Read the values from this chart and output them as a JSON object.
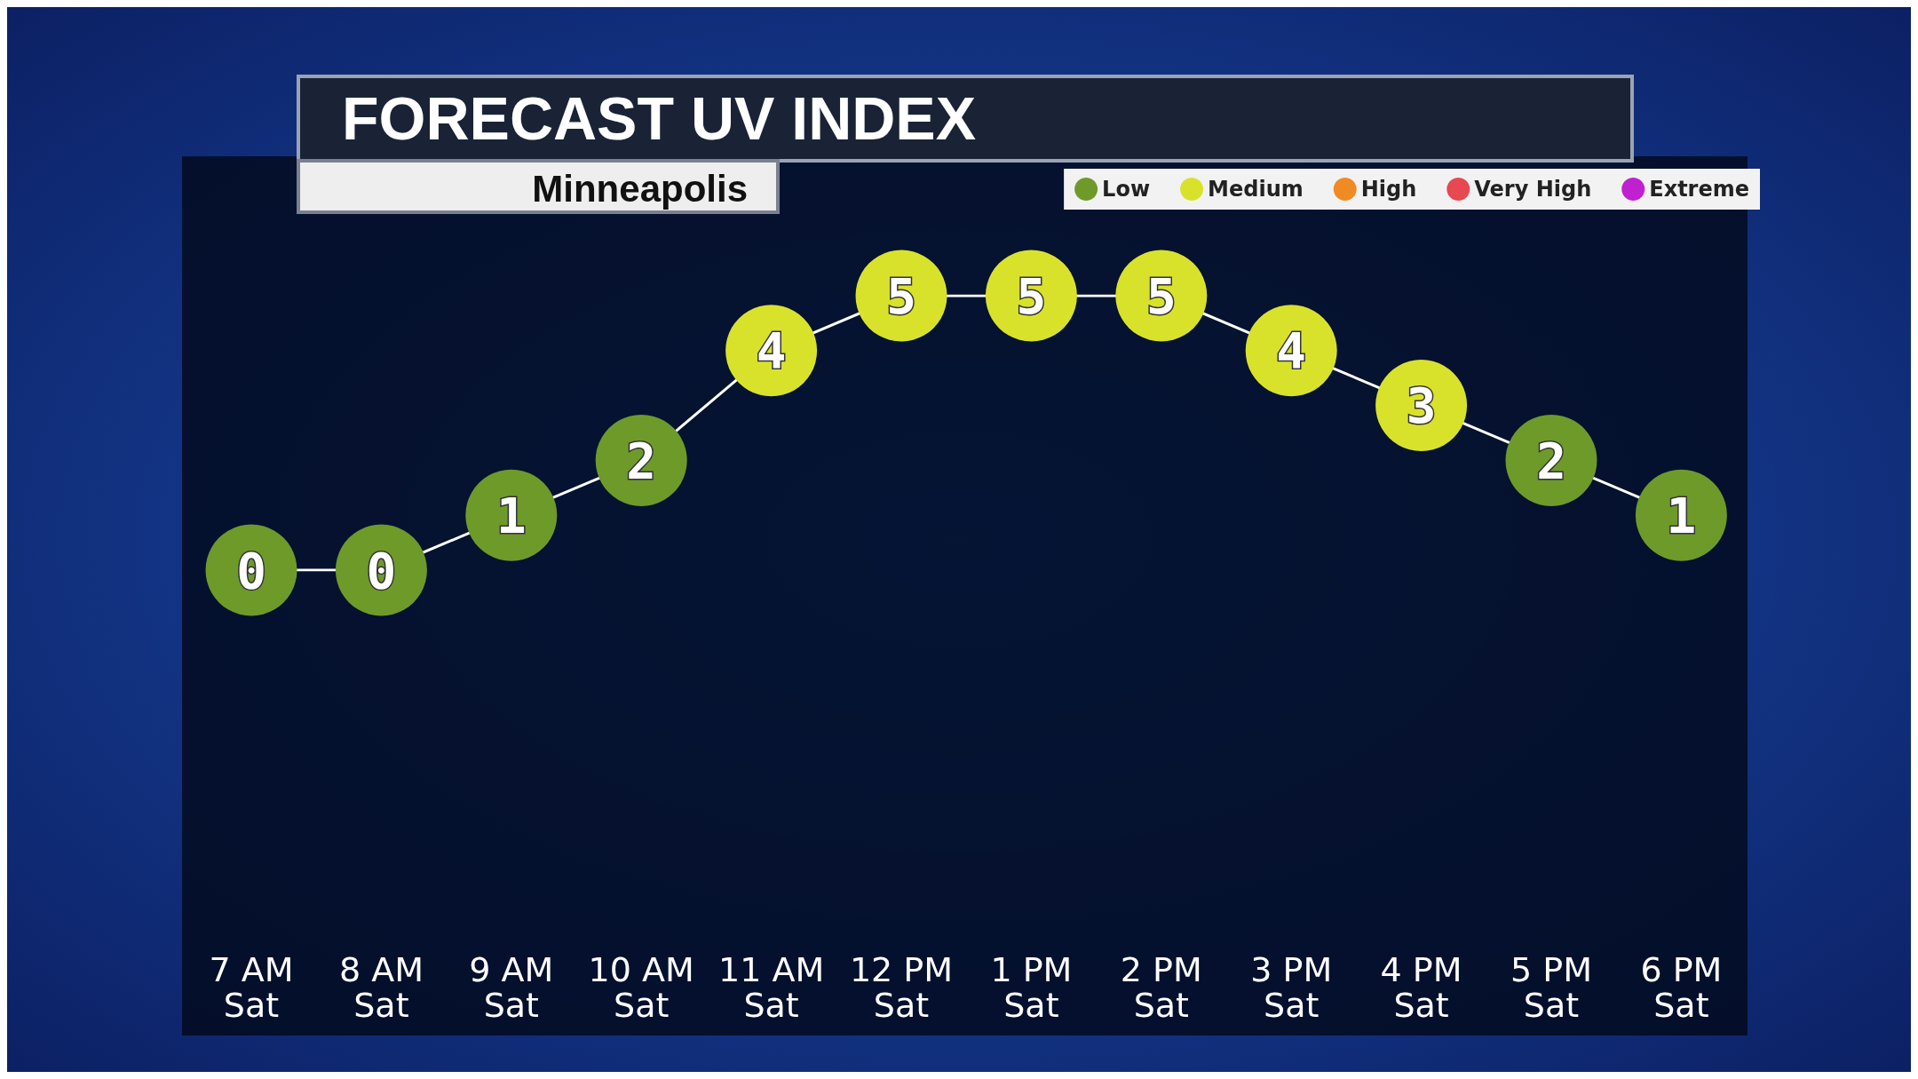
{
  "chart_data": {
    "type": "line",
    "title": "FORECAST UV INDEX",
    "subtitle": "Minneapolis",
    "categories": [
      "7 AM\nSat",
      "8 AM\nSat",
      "9 AM\nSat",
      "10 AM\nSat",
      "11 AM\nSat",
      "12 PM\nSat",
      "1 PM\nSat",
      "2 PM\nSat",
      "3 PM\nSat",
      "4 PM\nSat",
      "5 PM\nSat",
      "6 PM\nSat"
    ],
    "series": [
      {
        "color": "#ffffff",
        "colors": [
          "#6e9a2a",
          "#6e9a2a",
          "#6e9a2a",
          "#6e9a2a",
          "#d9e22b",
          "#d9e22b",
          "#d9e22b",
          "#d9e22b",
          "#d9e22b",
          "#d9e22b",
          "#6e9a2a",
          "#6e9a2a"
        ],
        "values": [
          0,
          0,
          1,
          2,
          4,
          5,
          5,
          5,
          4,
          3,
          2,
          1
        ]
      },
      {
        "type": "scatter",
        "name": "Low",
        "color": "#6e9a2a",
        "values": [
          null,
          null,
          null,
          null,
          null,
          null,
          null,
          null,
          null,
          null,
          null,
          null
        ]
      },
      {
        "type": "scatter",
        "name": "Medium",
        "color": "#d9e22b",
        "values": [
          null,
          null,
          null,
          null,
          null,
          null,
          null,
          null,
          null,
          null,
          null,
          null
        ]
      },
      {
        "type": "scatter",
        "name": "High",
        "color": "#f08a24",
        "values": [
          null,
          null,
          null,
          null,
          null,
          null,
          null,
          null,
          null,
          null,
          null,
          null
        ]
      },
      {
        "type": "scatter",
        "name": "Very High",
        "color": "#e8484f",
        "values": [
          null,
          null,
          null,
          null,
          null,
          null,
          null,
          null,
          null,
          null,
          null,
          null
        ]
      },
      {
        "type": "scatter",
        "name": "Extreme",
        "color": "#c020d0",
        "values": [
          null,
          null,
          null,
          null,
          null,
          null,
          null,
          null,
          null,
          null,
          null,
          null
        ]
      }
    ],
    "marker": "circle",
    "data_labels": true,
    "legend": "top right"
  }
}
